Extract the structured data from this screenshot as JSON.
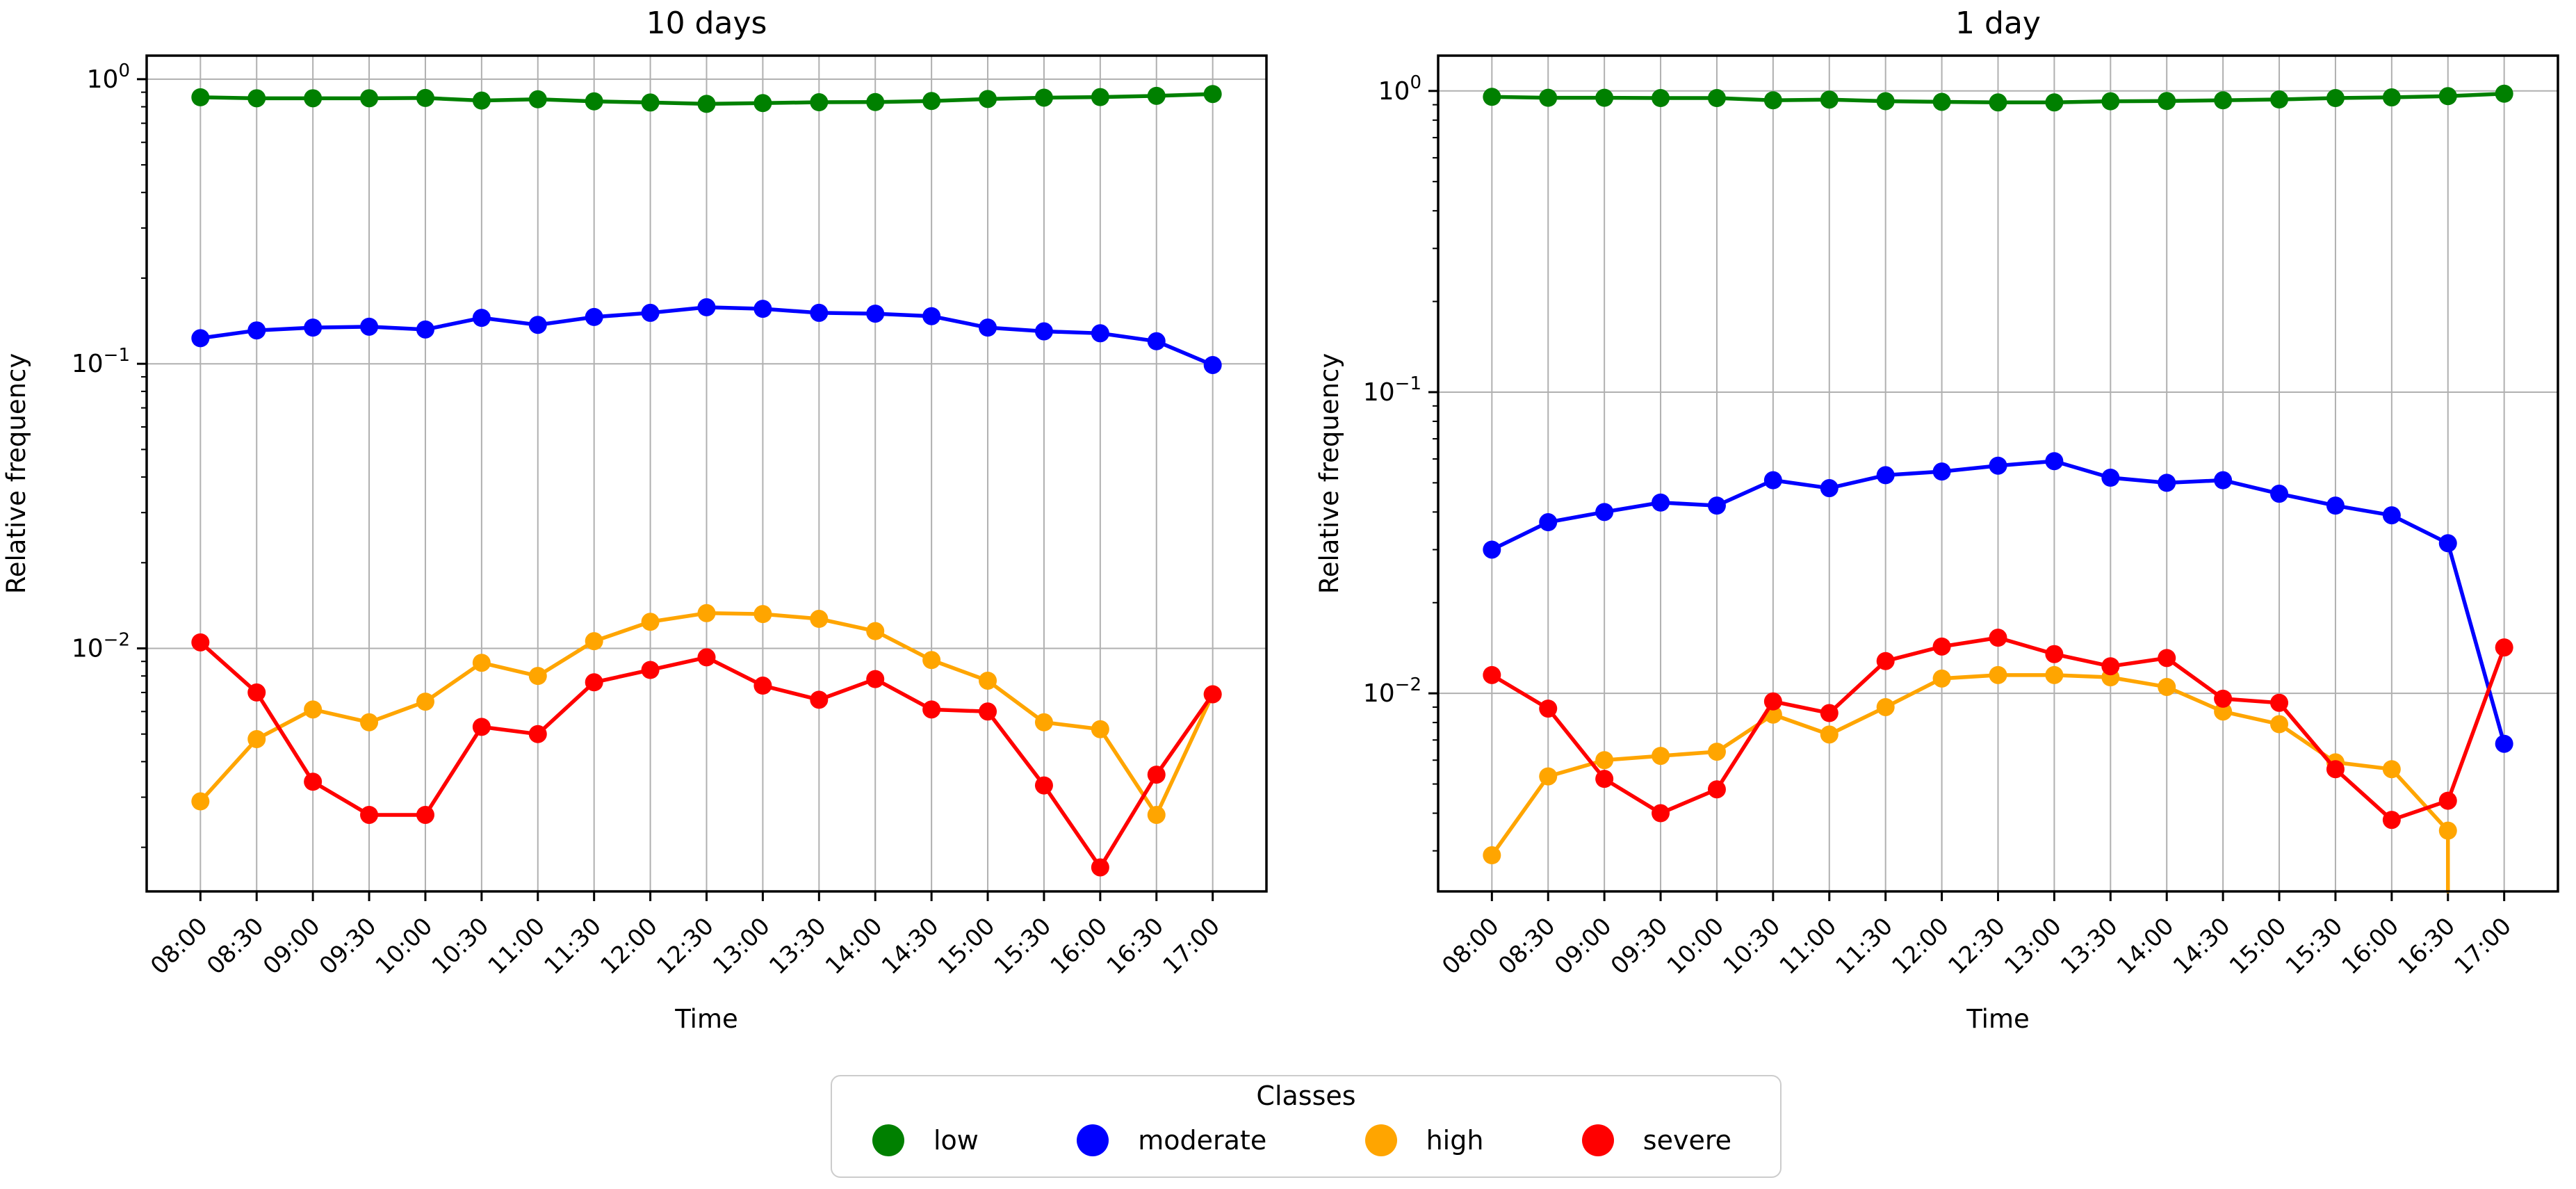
{
  "figure": {
    "background": "#ffffff",
    "grid_color": "#b0b0b0",
    "spine_color": "#000000",
    "legend": {
      "title": "Classes",
      "entries": [
        {
          "label": "low",
          "color": "#008000"
        },
        {
          "label": "moderate",
          "color": "#0000ff"
        },
        {
          "label": "high",
          "color": "#ffa500"
        },
        {
          "label": "severe",
          "color": "#ff0000"
        }
      ]
    }
  },
  "chart_data": [
    {
      "type": "line",
      "title": "10 days",
      "xlabel": "Time",
      "ylabel": "Relative frequency",
      "yscale": "log",
      "grid": true,
      "legend_position": "bottom-center",
      "ylim": [
        0.0014,
        1.21
      ],
      "y_tick_exponents": [
        0,
        -1,
        -2
      ],
      "y_tick_labels": [
        "10⁰",
        "10⁻¹",
        "10⁻²"
      ],
      "categories": [
        "08:00",
        "08:30",
        "09:00",
        "09:30",
        "10:00",
        "10:30",
        "11:00",
        "11:30",
        "12:00",
        "12:30",
        "13:00",
        "13:30",
        "14:00",
        "14:30",
        "15:00",
        "15:30",
        "16:00",
        "16:30",
        "17:00"
      ],
      "series": [
        {
          "name": "low",
          "color": "#008000",
          "values": [
            0.864,
            0.857,
            0.857,
            0.857,
            0.859,
            0.841,
            0.85,
            0.836,
            0.828,
            0.819,
            0.824,
            0.83,
            0.831,
            0.838,
            0.852,
            0.861,
            0.865,
            0.874,
            0.887
          ]
        },
        {
          "name": "moderate",
          "color": "#0000ff",
          "values": [
            0.123,
            0.131,
            0.134,
            0.135,
            0.132,
            0.145,
            0.137,
            0.146,
            0.151,
            0.158,
            0.156,
            0.151,
            0.15,
            0.147,
            0.134,
            0.13,
            0.128,
            0.12,
            0.099
          ]
        },
        {
          "name": "high",
          "color": "#ffa500",
          "values": [
            0.0029,
            0.0048,
            0.0061,
            0.0055,
            0.0065,
            0.0089,
            0.008,
            0.0106,
            0.0124,
            0.0133,
            0.0132,
            0.0127,
            0.0115,
            0.0091,
            0.0077,
            0.0055,
            0.0052,
            0.0026,
            0.0069
          ]
        },
        {
          "name": "severe",
          "color": "#ff0000",
          "values": [
            0.0105,
            0.007,
            0.0034,
            0.0026,
            0.0026,
            0.0053,
            0.005,
            0.0076,
            0.0084,
            0.0093,
            0.0074,
            0.0066,
            0.0078,
            0.0061,
            0.006,
            0.0033,
            0.0017,
            0.0036,
            0.0069
          ]
        }
      ]
    },
    {
      "type": "line",
      "title": "1 day",
      "xlabel": "Time",
      "ylabel": "Relative frequency",
      "yscale": "log",
      "grid": true,
      "legend_position": "bottom-center",
      "ylim": [
        0.0022,
        1.31
      ],
      "y_tick_exponents": [
        0,
        -1,
        -2
      ],
      "y_tick_labels": [
        "10⁰",
        "10⁻¹",
        "10⁻²"
      ],
      "categories": [
        "08:00",
        "08:30",
        "09:00",
        "09:30",
        "10:00",
        "10:30",
        "11:00",
        "11:30",
        "12:00",
        "12:30",
        "13:00",
        "13:30",
        "14:00",
        "14:30",
        "15:00",
        "15:30",
        "16:00",
        "16:30",
        "17:00"
      ],
      "series": [
        {
          "name": "low",
          "color": "#008000",
          "values": [
            0.956,
            0.949,
            0.949,
            0.947,
            0.947,
            0.931,
            0.936,
            0.925,
            0.92,
            0.916,
            0.916,
            0.924,
            0.926,
            0.931,
            0.937,
            0.947,
            0.952,
            0.961,
            0.979
          ]
        },
        {
          "name": "moderate",
          "color": "#0000ff",
          "values": [
            0.03,
            0.037,
            0.04,
            0.043,
            0.042,
            0.051,
            0.048,
            0.053,
            0.0545,
            0.057,
            0.059,
            0.052,
            0.05,
            0.051,
            0.046,
            0.042,
            0.039,
            0.0315,
            0.0068
          ]
        },
        {
          "name": "high",
          "color": "#ffa500",
          "values": [
            0.0029,
            0.0053,
            0.006,
            0.0062,
            0.0064,
            0.0085,
            0.0073,
            0.009,
            0.0112,
            0.0115,
            0.0115,
            0.0113,
            0.0105,
            0.0087,
            0.0079,
            0.0059,
            0.0056,
            0.0035,
            0.0
          ]
        },
        {
          "name": "severe",
          "color": "#ff0000",
          "values": [
            0.0115,
            0.0089,
            0.0052,
            0.004,
            0.0048,
            0.0094,
            0.0086,
            0.0128,
            0.0143,
            0.0153,
            0.0135,
            0.0123,
            0.0131,
            0.0096,
            0.0093,
            0.0056,
            0.0038,
            0.0044,
            0.0142
          ]
        }
      ]
    }
  ]
}
